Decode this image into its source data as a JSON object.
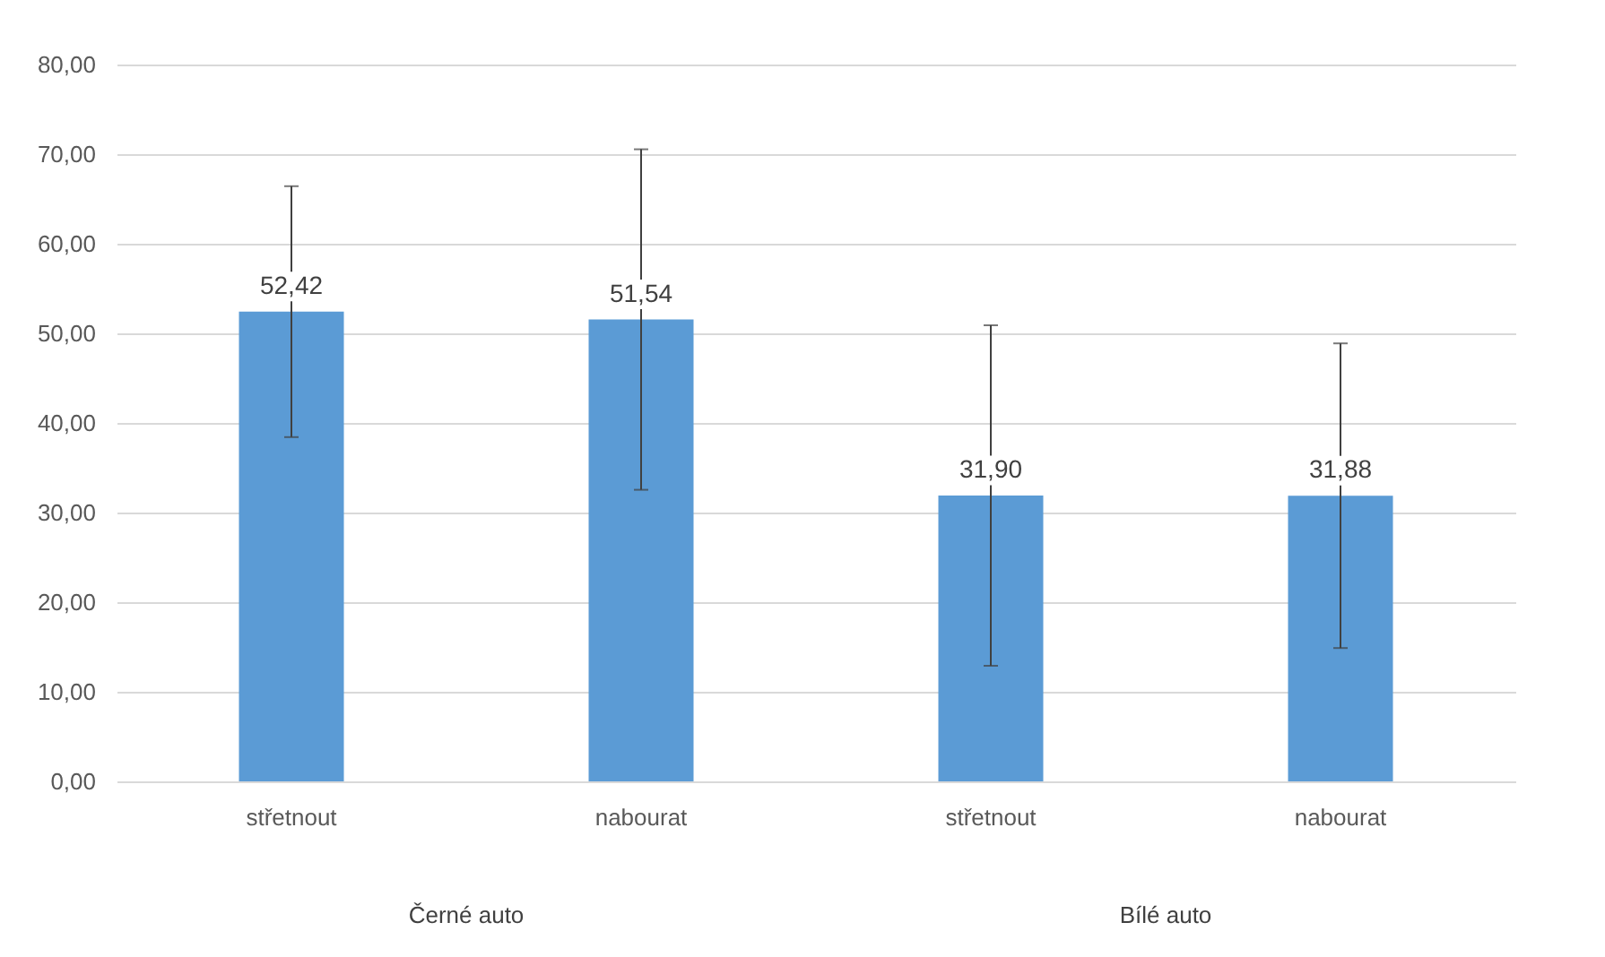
{
  "chart_data": {
    "type": "bar",
    "categories": [
      "střetnout",
      "nabourat",
      "střetnout",
      "nabourat"
    ],
    "values": [
      52.42,
      51.54,
      31.9,
      31.88
    ],
    "errors": [
      14,
      19,
      19,
      17
    ],
    "value_labels": [
      "52,42",
      "51,54",
      "31,90",
      "31,88"
    ],
    "color": "#5b9bd5",
    "annotations": [
      "Černé auto",
      "Bílé auto"
    ],
    "ylim": [
      0,
      80
    ],
    "yticks": [
      {
        "value": 0,
        "label": "0,00"
      },
      {
        "value": 10,
        "label": "10,00"
      },
      {
        "value": 20,
        "label": "20,00"
      },
      {
        "value": 30,
        "label": "30,00"
      },
      {
        "value": 40,
        "label": "40,00"
      },
      {
        "value": 50,
        "label": "50,00"
      },
      {
        "value": 60,
        "label": "60,00"
      },
      {
        "value": 70,
        "label": "70,00"
      },
      {
        "value": 80,
        "label": "80,00"
      }
    ],
    "grid": "y"
  }
}
